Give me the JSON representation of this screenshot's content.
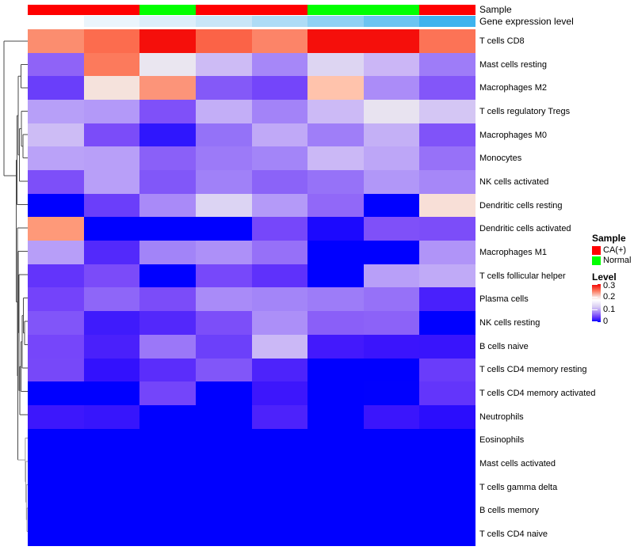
{
  "annotations": {
    "sample_label": "Sample",
    "gene_label": "Gene expression level",
    "sample_groups": [
      "CA(+)",
      "CA(+)",
      "Normal",
      "CA(+)",
      "CA(+)",
      "Normal",
      "Normal",
      "CA(+)"
    ],
    "sample_colors": [
      "#FF0000",
      "#FF0000",
      "#00FF00",
      "#FF0000",
      "#FF0000",
      "#00FF00",
      "#00FF00",
      "#FF0000"
    ],
    "gene_colors": [
      "#FFFFFF",
      "#EBF5FC",
      "#DCEEFA",
      "#C9E6F8",
      "#AEDCF6",
      "#8FD1F4",
      "#6BC4F1",
      "#3EB3EE"
    ]
  },
  "legend": {
    "sample_title": "Sample",
    "sample_items": [
      {
        "label": "CA(+)",
        "color": "#FF0000"
      },
      {
        "label": "Normal",
        "color": "#00FF00"
      }
    ],
    "level_title": "Level",
    "level_ticks": [
      "0.3",
      "0.2",
      "0.1",
      "0"
    ],
    "level_scale": {
      "min": 0,
      "max": 0.3,
      "min_color": "#0000FF",
      "mid_color": "#FFFFFF",
      "max_color": "#FF0000"
    }
  },
  "chart_data": {
    "type": "heatmap",
    "title": "",
    "columns": 8,
    "column_groups": [
      "CA(+)",
      "CA(+)",
      "Normal",
      "CA(+)",
      "CA(+)",
      "Normal",
      "Normal",
      "CA(+)"
    ],
    "value_range": [
      0,
      0.3
    ],
    "legend_position": "right",
    "rows": [
      {
        "label": "T cells CD8",
        "values": [
          0.22,
          0.24,
          0.29,
          0.24,
          0.22,
          0.29,
          0.29,
          0.23
        ],
        "colors": [
          "#FB8D6F",
          "#FC6C4E",
          "#F50F0B",
          "#FB6347",
          "#FC8468",
          "#F50F0B",
          "#F50F0B",
          "#FC7356"
        ]
      },
      {
        "label": "Mast cells resting",
        "values": [
          0.07,
          0.23,
          0.14,
          0.12,
          0.09,
          0.13,
          0.12,
          0.08
        ],
        "colors": [
          "#8F63F7",
          "#FC7A5C",
          "#EAE6F0",
          "#CDBBF5",
          "#A687F8",
          "#DDD5F2",
          "#CBB6F6",
          "#9E7CF8"
        ]
      },
      {
        "label": "Macrophages M2",
        "values": [
          0.05,
          0.16,
          0.21,
          0.06,
          0.05,
          0.19,
          0.09,
          0.06
        ],
        "colors": [
          "#6A3EFA",
          "#F5E2DC",
          "#FC9479",
          "#8459F8",
          "#7445FA",
          "#FFC3AC",
          "#AB8CF8",
          "#8356F9"
        ]
      },
      {
        "label": "T cells regulatory Tregs",
        "values": [
          0.1,
          0.1,
          0.06,
          0.11,
          0.09,
          0.12,
          0.14,
          0.12
        ],
        "colors": [
          "#B79FF8",
          "#B399F8",
          "#7F50F9",
          "#C3AEF7",
          "#A383F8",
          "#CCBAF6",
          "#E8E3F0",
          "#D4C6F4"
        ]
      },
      {
        "label": "Macrophages M0",
        "values": [
          0.12,
          0.06,
          0.02,
          0.08,
          0.11,
          0.08,
          0.11,
          0.06
        ],
        "colors": [
          "#CDBCF5",
          "#7B4CF9",
          "#2F16FD",
          "#9472F8",
          "#C0A9F7",
          "#9F7EF8",
          "#C4B0F6",
          "#8053F9"
        ]
      },
      {
        "label": "Monocytes",
        "values": [
          0.1,
          0.1,
          0.07,
          0.08,
          0.09,
          0.12,
          0.11,
          0.08
        ],
        "colors": [
          "#BAA2F8",
          "#B89FF8",
          "#8A60F8",
          "#9C7AF8",
          "#A385F8",
          "#CBB8F6",
          "#BDA6F7",
          "#9771F8"
        ]
      },
      {
        "label": "NK cells activated",
        "values": [
          0.06,
          0.1,
          0.06,
          0.08,
          0.07,
          0.08,
          0.1,
          0.09
        ],
        "colors": [
          "#7D4FF9",
          "#B89FF8",
          "#8157F9",
          "#A081F8",
          "#8B63F8",
          "#9672F8",
          "#B197F8",
          "#A687F8"
        ]
      },
      {
        "label": "Dendritic cells resting",
        "values": [
          0.0,
          0.05,
          0.09,
          0.13,
          0.1,
          0.07,
          0.0,
          0.16
        ],
        "colors": [
          "#0000FF",
          "#6B3EFA",
          "#A98AF8",
          "#DCD4F3",
          "#B49AF8",
          "#9168F8",
          "#0000FF",
          "#F8DFD7"
        ]
      },
      {
        "label": "Dendritic cells activated",
        "values": [
          0.21,
          0.0,
          0.0,
          0.0,
          0.05,
          0.01,
          0.06,
          0.06
        ],
        "colors": [
          "#FE9979",
          "#0000FF",
          "#0000FF",
          "#0000FF",
          "#7647FA",
          "#1C09FE",
          "#7F50F9",
          "#7C4DF9"
        ]
      },
      {
        "label": "Macrophages M1",
        "values": [
          0.1,
          0.04,
          0.09,
          0.09,
          0.08,
          0.0,
          0.0,
          0.1
        ],
        "colors": [
          "#B79EF8",
          "#5329FB",
          "#A284F8",
          "#AD90F8",
          "#9670F8",
          "#0000FF",
          "#0000FF",
          "#B094F8"
        ]
      },
      {
        "label": "T cells follicular helper",
        "values": [
          0.04,
          0.06,
          0.0,
          0.06,
          0.04,
          0.0,
          0.1,
          0.11
        ],
        "colors": [
          "#6334FB",
          "#7B4BF9",
          "#0000FF",
          "#7748FA",
          "#5F31FB",
          "#0000FF",
          "#B89FF8",
          "#C0AAF7"
        ]
      },
      {
        "label": "Plasma cells",
        "values": [
          0.05,
          0.07,
          0.06,
          0.09,
          0.09,
          0.08,
          0.08,
          0.03
        ],
        "colors": [
          "#7443FA",
          "#8E66F8",
          "#7B4CF9",
          "#A98BF8",
          "#A385F8",
          "#9D7CF8",
          "#9671F8",
          "#4920FC"
        ]
      },
      {
        "label": "NK cells resting",
        "values": [
          0.06,
          0.03,
          0.04,
          0.06,
          0.09,
          0.07,
          0.07,
          0.0
        ],
        "colors": [
          "#8155F9",
          "#3F1BFC",
          "#5328FB",
          "#7C4EF9",
          "#AC8FF8",
          "#8A5FF8",
          "#8C62F8",
          "#0000FF"
        ]
      },
      {
        "label": "B cells naive",
        "values": [
          0.05,
          0.03,
          0.08,
          0.05,
          0.12,
          0.03,
          0.02,
          0.02
        ],
        "colors": [
          "#7646FA",
          "#4A20FB",
          "#9B77F8",
          "#6C40FA",
          "#CBB8F6",
          "#4319FC",
          "#3B14FC",
          "#3914FC"
        ]
      },
      {
        "label": "T cells CD4 memory resting",
        "values": [
          0.06,
          0.02,
          0.04,
          0.06,
          0.03,
          0.0,
          0.0,
          0.05
        ],
        "colors": [
          "#7748F9",
          "#3311FD",
          "#5B2DFB",
          "#8156F9",
          "#4D23FB",
          "#0000FF",
          "#0000FF",
          "#6A3CFA"
        ]
      },
      {
        "label": "T cells CD4 memory activated",
        "values": [
          0.0,
          0.0,
          0.05,
          0.0,
          0.02,
          0.0,
          0.0,
          0.04
        ],
        "colors": [
          "#0000FF",
          "#0000FF",
          "#7445FA",
          "#0000FF",
          "#3D16FC",
          "#0000FF",
          "#0101FE",
          "#6335FB"
        ]
      },
      {
        "label": "Neutrophils",
        "values": [
          0.02,
          0.02,
          0.0,
          0.0,
          0.03,
          0.0,
          0.02,
          0.02
        ],
        "colors": [
          "#3D17FC",
          "#3715FC",
          "#0000FF",
          "#0000FF",
          "#4D22FB",
          "#0000FF",
          "#3B15FC",
          "#2B0DFD"
        ]
      },
      {
        "label": "Eosinophils",
        "values": [
          0,
          0,
          0,
          0,
          0,
          0,
          0,
          0
        ],
        "colors": [
          "#0000FF",
          "#0000FF",
          "#0000FF",
          "#0000FF",
          "#0000FF",
          "#0000FF",
          "#0000FF",
          "#0000FF"
        ]
      },
      {
        "label": "Mast cells activated",
        "values": [
          0,
          0,
          0,
          0,
          0,
          0,
          0,
          0
        ],
        "colors": [
          "#0000FF",
          "#0000FF",
          "#0000FF",
          "#0000FF",
          "#0000FF",
          "#0000FF",
          "#0000FF",
          "#0000FF"
        ]
      },
      {
        "label": "T cells gamma delta",
        "values": [
          0,
          0,
          0,
          0,
          0,
          0,
          0,
          0
        ],
        "colors": [
          "#0000FF",
          "#0000FF",
          "#0000FF",
          "#0000FF",
          "#0000FF",
          "#0000FF",
          "#0000FF",
          "#0000FF"
        ]
      },
      {
        "label": "B cells memory",
        "values": [
          0,
          0,
          0,
          0,
          0,
          0,
          0,
          0
        ],
        "colors": [
          "#0000FF",
          "#0000FF",
          "#0000FF",
          "#0000FF",
          "#0000FF",
          "#0000FF",
          "#0000FF",
          "#0000FF"
        ]
      },
      {
        "label": "T cells CD4 naive",
        "values": [
          0,
          0,
          0,
          0,
          0,
          0,
          0,
          0
        ],
        "colors": [
          "#0000FF",
          "#0000FF",
          "#0000FF",
          "#0000FF",
          "#0000FF",
          "#0000FF",
          "#0000FF",
          "#0000FF"
        ]
      }
    ]
  }
}
